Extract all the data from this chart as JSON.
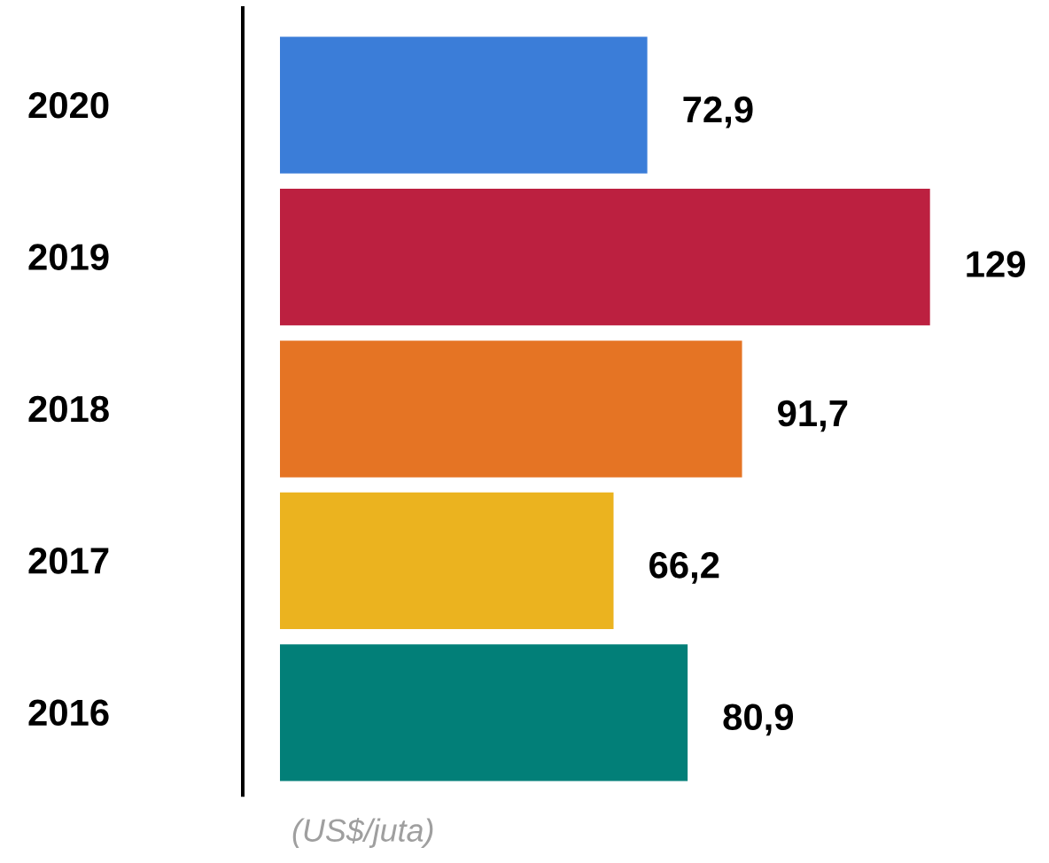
{
  "chart_data": {
    "type": "bar",
    "orientation": "horizontal",
    "categories": [
      "2020",
      "2019",
      "2018",
      "2017",
      "2016"
    ],
    "values": [
      72.9,
      129,
      91.7,
      66.2,
      80.9
    ],
    "value_labels": [
      "72,9",
      "129",
      "91,7",
      "66,2",
      "80,9"
    ],
    "colors": [
      "#3b7dd8",
      "#bc2040",
      "#e57424",
      "#ebb31f",
      "#027f78"
    ],
    "xlabel": "(US$/juta)"
  }
}
